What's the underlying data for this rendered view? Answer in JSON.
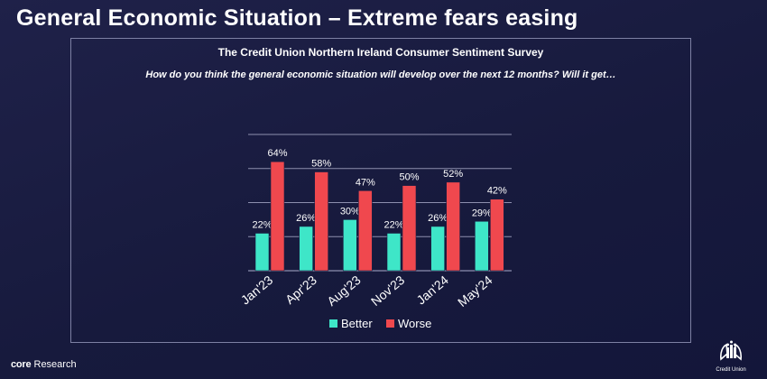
{
  "slide": {
    "title": "General Economic Situation – Extreme fears easing"
  },
  "chart_data": {
    "type": "bar",
    "title": "The Credit Union Northern Ireland Consumer Sentiment Survey",
    "subtitle": "How do you think the general economic situation will develop over the next 12 months? Will it get…",
    "categories": [
      "Jan'23",
      "Apr'23",
      "Aug'23",
      "Nov'23",
      "Jan'24",
      "May'24"
    ],
    "series": [
      {
        "name": "Better",
        "values": [
          22,
          26,
          30,
          22,
          26,
          29
        ],
        "color": "#3ee6c8"
      },
      {
        "name": "Worse",
        "values": [
          64,
          58,
          47,
          50,
          52,
          42
        ],
        "color": "#f0484e"
      }
    ],
    "value_suffix": "%",
    "ylim": [
      0,
      80
    ],
    "grid": true,
    "legend_position": "bottom"
  },
  "footer": {
    "brand_core": "core",
    "brand_research": "Research",
    "logo_text": "Credit Union"
  },
  "colors": {
    "background": "#1a1d42",
    "panel_border": "#7d80a3",
    "gridline": "#8d8fae"
  }
}
